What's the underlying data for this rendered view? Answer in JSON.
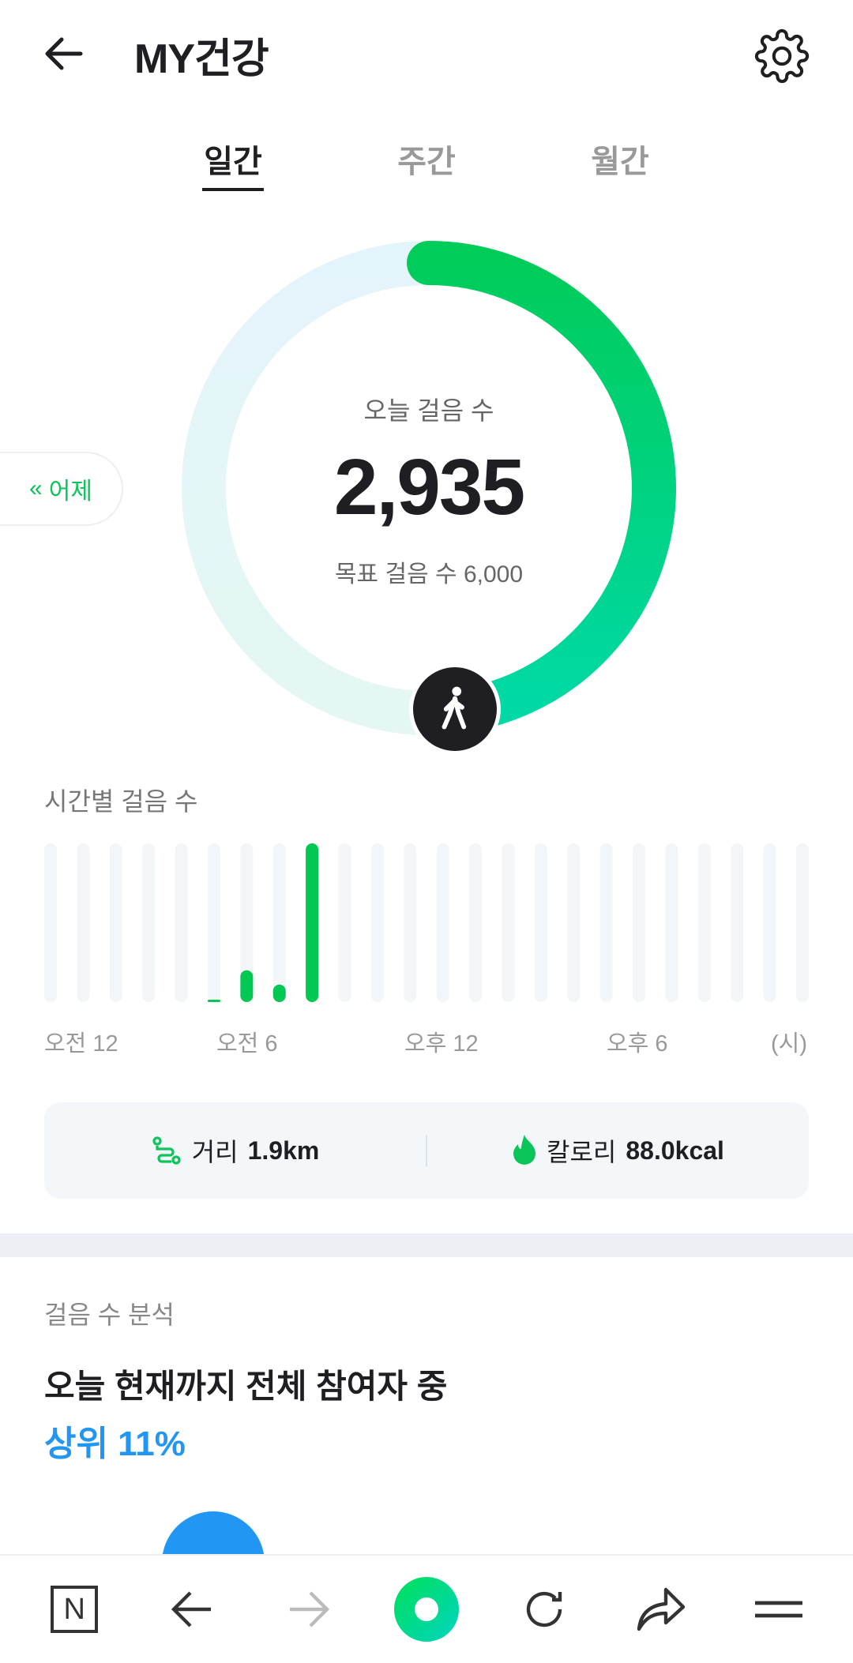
{
  "header": {
    "title": "MY건강",
    "back_icon": "arrow-left-icon",
    "settings_icon": "gear-icon"
  },
  "tabs": [
    {
      "label": "일간",
      "active": true
    },
    {
      "label": "주간",
      "active": false
    },
    {
      "label": "월간",
      "active": false
    }
  ],
  "ring": {
    "label": "오늘 걸음 수",
    "steps": "2,935",
    "goal_text": "목표 걸음 수 6,000",
    "progress": 0.489,
    "colors": {
      "track": "#e4f4f7",
      "fill_start": "#00cc5a",
      "fill_end": "#00d9a6"
    },
    "icon": "walking-person-icon"
  },
  "yesterday_button": {
    "label": "어제",
    "icon": "double-chevron-left-icon"
  },
  "hourly": {
    "title": "시간별 걸음 수",
    "x_labels": [
      "오전 12",
      "오전 6",
      "오후 12",
      "오후 6",
      "(시)"
    ]
  },
  "chart_data": {
    "type": "bar",
    "categories": [
      "0",
      "1",
      "2",
      "3",
      "4",
      "5",
      "6",
      "7",
      "8",
      "9",
      "10",
      "11",
      "12",
      "13",
      "14",
      "15",
      "16",
      "17",
      "18",
      "19",
      "20",
      "21",
      "22",
      "23"
    ],
    "values_relative": [
      0,
      0,
      0,
      0,
      0,
      0.01,
      0.2,
      0.11,
      1,
      0,
      0,
      0,
      0,
      0,
      0,
      0,
      0,
      0,
      0,
      0,
      0,
      0,
      0,
      0
    ],
    "colors": {
      "bar": "#00c853",
      "track": "#f3f6f9"
    }
  },
  "stats": {
    "distance_label": "거리",
    "distance_value": "1.9km",
    "calorie_label": "칼로리",
    "calorie_value": "88.0kcal",
    "distance_icon": "route-icon",
    "calorie_icon": "flame-icon"
  },
  "analysis": {
    "section": "걸음 수 분석",
    "headline": "오늘 현재까지 전체 참여자 중",
    "rank": "상위 11%"
  },
  "bottom_nav": [
    {
      "icon": "naver-home-icon",
      "label": "N"
    },
    {
      "icon": "back-arrow-icon"
    },
    {
      "icon": "forward-arrow-icon"
    },
    {
      "icon": "green-dot-icon"
    },
    {
      "icon": "refresh-icon"
    },
    {
      "icon": "share-icon"
    },
    {
      "icon": "menu-icon"
    }
  ]
}
